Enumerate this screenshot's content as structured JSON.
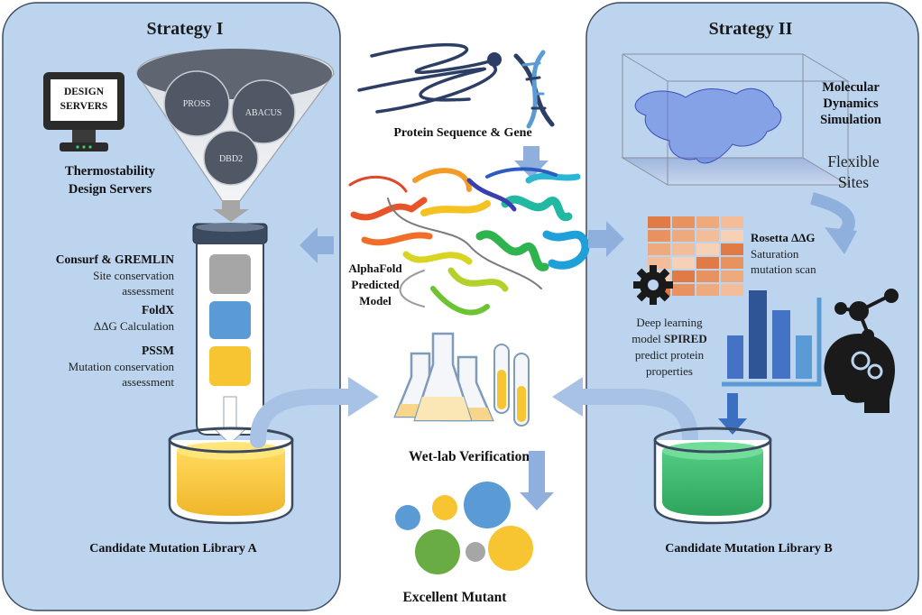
{
  "strategy1": {
    "title": "Strategy I",
    "design_servers_sign": [
      "DESIGN",
      "SERVERS"
    ],
    "funnel_circles": [
      "PROSS",
      "ABACUS",
      "DBD2"
    ],
    "servers_caption": [
      "Thermostability",
      "Design Servers"
    ],
    "tools": [
      {
        "name": "Consurf & GREMLIN",
        "desc": [
          "Site conservation",
          "assessment"
        ]
      },
      {
        "name": "FoldX",
        "desc": [
          "ΔΔG Calculation"
        ]
      },
      {
        "name": "PSSM",
        "desc": [
          "Mutation conservation",
          "assessment"
        ]
      }
    ],
    "library": "Candidate Mutation Library A",
    "colors": {
      "panel": "#bcd4ee",
      "yellow": "#f6c531",
      "blue": "#5b9bd5",
      "gray": "#a6a6a6"
    }
  },
  "center": {
    "sequence_label": "Protein Sequence & Gene",
    "model_label": [
      "AlphaFold",
      "Predicted",
      "Model"
    ],
    "wetlab_label": "Wet-lab Verification",
    "mutant_label": "Excellent Mutant"
  },
  "strategy2": {
    "title": "Strategy II",
    "md_label": [
      "Molecular",
      "Dynamics",
      "Simulation"
    ],
    "flexible_label": [
      "Flexible",
      "Sites"
    ],
    "rosetta": {
      "name": "Rosetta ΔΔG",
      "desc": [
        "Saturation",
        "mutation scan"
      ]
    },
    "deep": {
      "pre": "Deep learning",
      "model_pre": "model ",
      "model_name": "SPIRED",
      "desc": [
        "predict protein",
        "properties"
      ]
    },
    "library": "Candidate Mutation Library B",
    "colors": {
      "panel": "#bcd4ee",
      "green": "#3ab56a",
      "heat": "#e07b45"
    }
  }
}
